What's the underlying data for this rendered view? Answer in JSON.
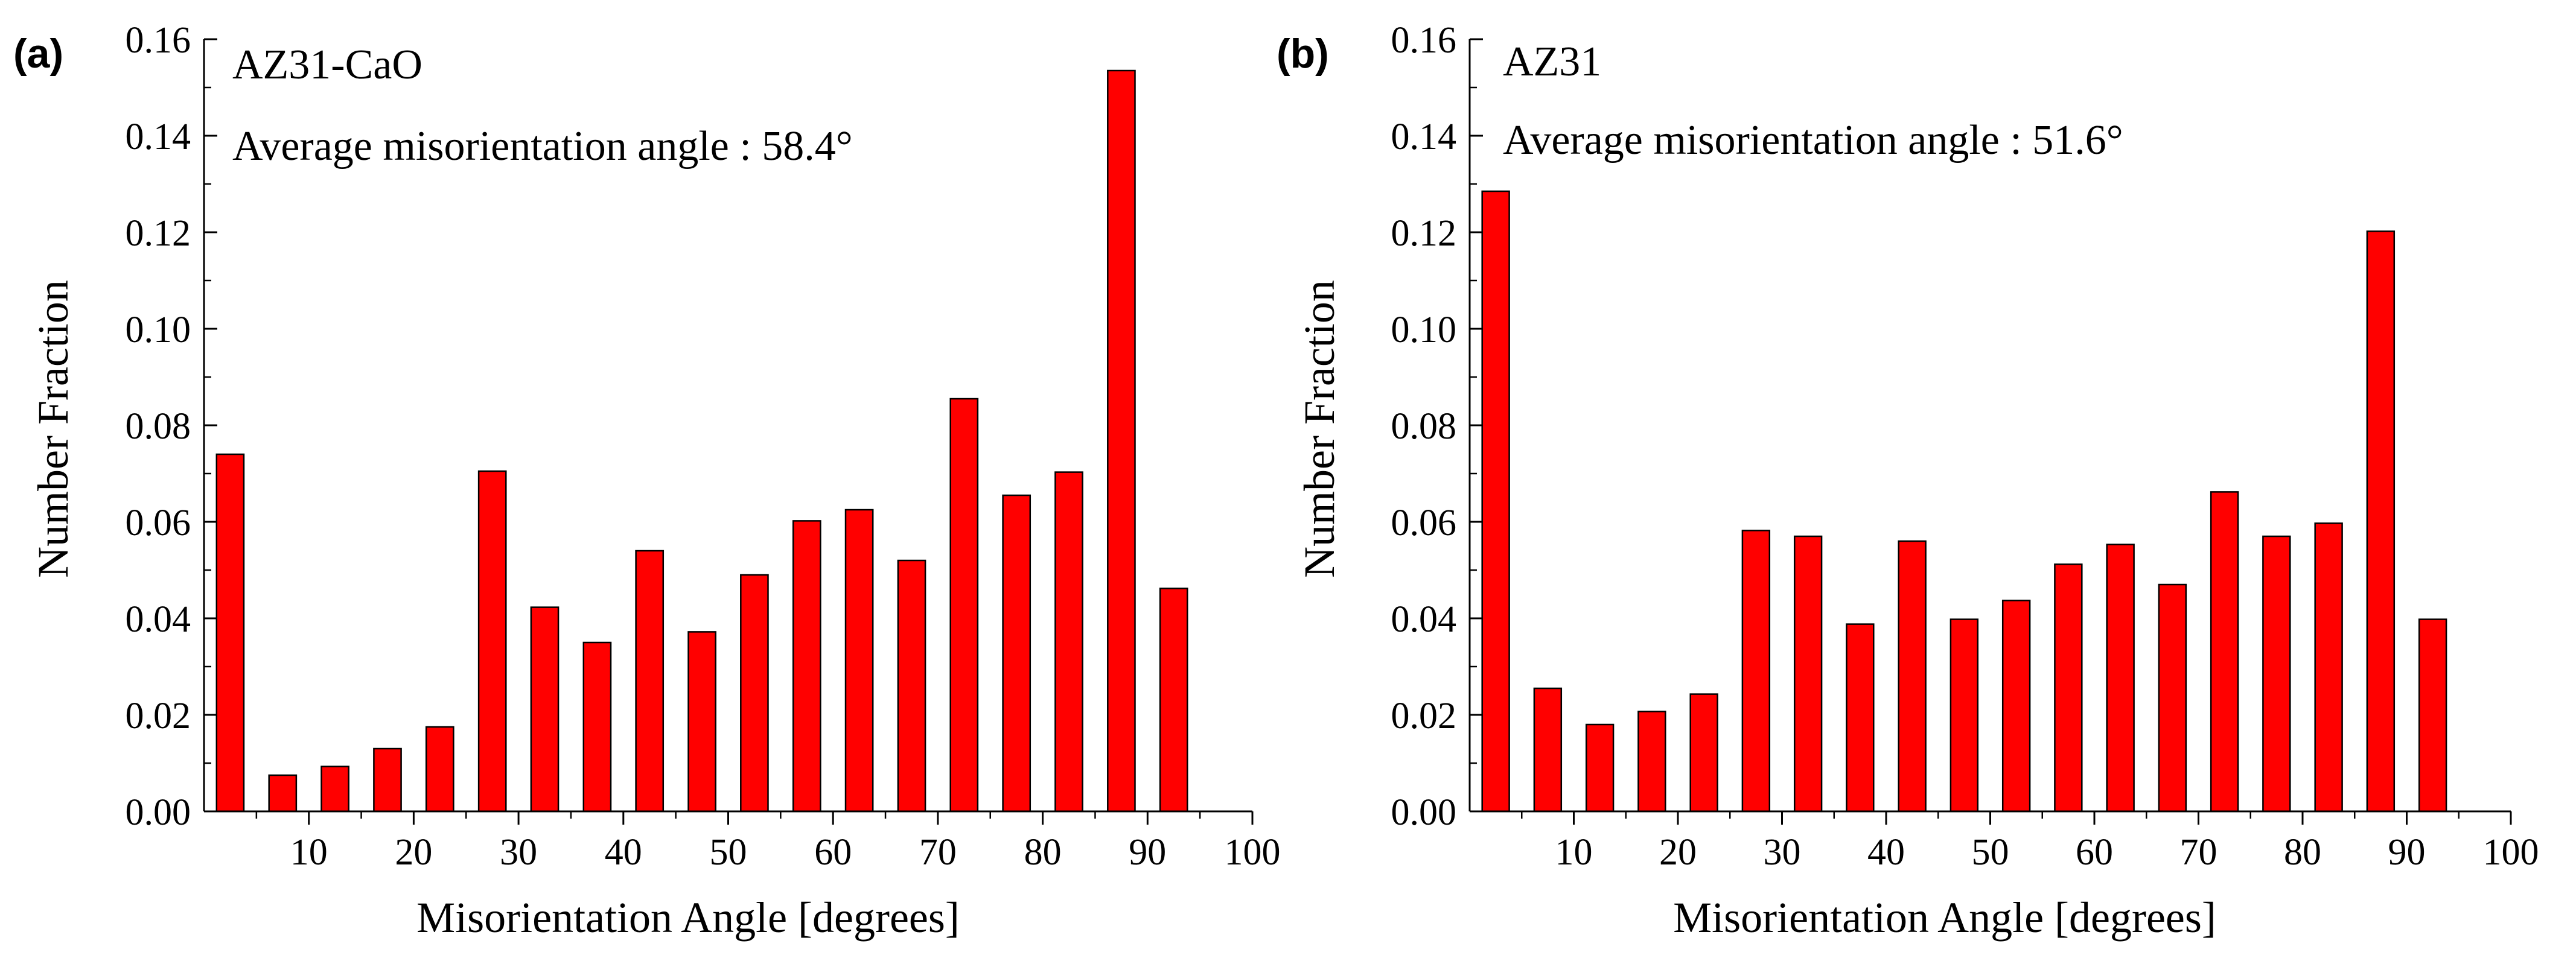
{
  "chart_data": [
    {
      "type": "bar",
      "panel_label": "(a)",
      "annotation_title": "AZ31-CaO",
      "annotation_text": "Average misorientation angle : 58.4°",
      "xlabel": "Misorientation Angle [degrees]",
      "ylabel": "Number Fraction",
      "xlim": [
        0,
        100
      ],
      "ylim": [
        0,
        0.16
      ],
      "xticks": [
        10,
        20,
        30,
        40,
        50,
        60,
        70,
        80,
        90,
        100
      ],
      "yticks": [
        "0.00",
        "0.02",
        "0.04",
        "0.06",
        "0.08",
        "0.10",
        "0.12",
        "0.14",
        "0.16"
      ],
      "bar_color": "#ff0000",
      "bin_width": 5,
      "x": [
        2.5,
        7.5,
        12.5,
        17.5,
        22.5,
        27.5,
        32.5,
        37.5,
        42.5,
        47.5,
        52.5,
        57.5,
        62.5,
        67.5,
        72.5,
        77.5,
        82.5,
        87.5,
        92.5
      ],
      "values": [
        0.074,
        0.0075,
        0.0093,
        0.013,
        0.0175,
        0.0705,
        0.0423,
        0.035,
        0.054,
        0.0372,
        0.049,
        0.0602,
        0.0625,
        0.052,
        0.0855,
        0.0655,
        0.0703,
        0.1535,
        0.0462
      ]
    },
    {
      "type": "bar",
      "panel_label": "(b)",
      "annotation_title": "AZ31",
      "annotation_text": "Average misorientation angle : 51.6°",
      "xlabel": "Misorientation Angle [degrees]",
      "ylabel": "Number Fraction",
      "xlim": [
        0,
        100
      ],
      "ylim": [
        0,
        0.16
      ],
      "xticks": [
        10,
        20,
        30,
        40,
        50,
        60,
        70,
        80,
        90,
        100
      ],
      "yticks": [
        "0.00",
        "0.02",
        "0.04",
        "0.06",
        "0.08",
        "0.10",
        "0.12",
        "0.14",
        "0.16"
      ],
      "bar_color": "#ff0000",
      "bin_width": 5,
      "x": [
        2.5,
        7.5,
        12.5,
        17.5,
        22.5,
        27.5,
        32.5,
        37.5,
        42.5,
        47.5,
        52.5,
        57.5,
        62.5,
        67.5,
        72.5,
        77.5,
        82.5,
        87.5,
        92.5
      ],
      "values": [
        0.1285,
        0.0255,
        0.018,
        0.0207,
        0.0243,
        0.0582,
        0.057,
        0.0388,
        0.056,
        0.0398,
        0.0437,
        0.0512,
        0.0553,
        0.047,
        0.0662,
        0.057,
        0.0597,
        0.1202,
        0.0398
      ]
    }
  ]
}
